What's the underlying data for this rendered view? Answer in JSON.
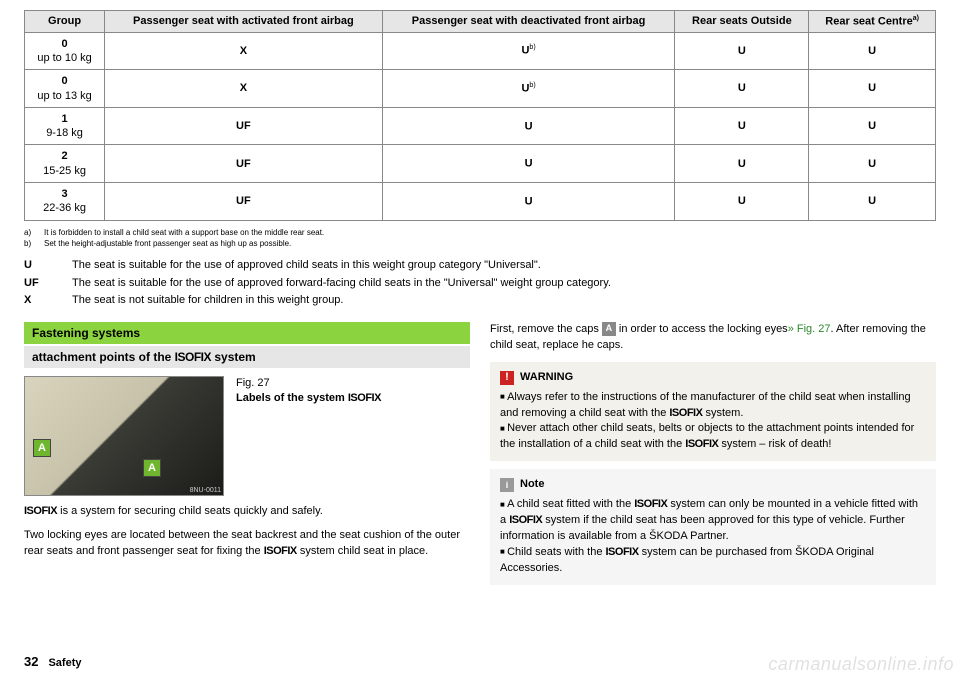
{
  "table": {
    "headers": [
      "Group",
      "Passenger seat with activated front airbag",
      "Passenger seat with deactivated front airbag",
      "Rear seats Outside",
      "Rear seat Centre"
    ],
    "header_sups": [
      "",
      "",
      "",
      "",
      "a)"
    ],
    "rows": [
      {
        "group_main": "0",
        "group_sub": "up to 10 kg",
        "c1": "X",
        "c2": "U",
        "c2_sup": "b)",
        "c3": "U",
        "c4": "U"
      },
      {
        "group_main": "0",
        "group_sub": "up to 13 kg",
        "c1": "X",
        "c2": "U",
        "c2_sup": "b)",
        "c3": "U",
        "c4": "U"
      },
      {
        "group_main": "1",
        "group_sub": "9-18 kg",
        "c1": "UF",
        "c2": "U",
        "c2_sup": "",
        "c3": "U",
        "c4": "U"
      },
      {
        "group_main": "2",
        "group_sub": "15-25 kg",
        "c1": "UF",
        "c2": "U",
        "c2_sup": "",
        "c3": "U",
        "c4": "U"
      },
      {
        "group_main": "3",
        "group_sub": "22-36 kg",
        "c1": "UF",
        "c2": "U",
        "c2_sup": "",
        "c3": "U",
        "c4": "U"
      }
    ]
  },
  "footnotes": {
    "a_lbl": "a)",
    "a_txt": "It is forbidden to install a child seat with a support base on the middle rear seat.",
    "b_lbl": "b)",
    "b_txt": "Set the height-adjustable front passenger seat as high up as possible."
  },
  "legend": {
    "u_key": "U",
    "u_txt": "The seat is suitable for the use of approved child seats in this weight group category \"Universal\".",
    "uf_key": "UF",
    "uf_txt": "The seat is suitable for the use of approved forward-facing child seats in the \"Universal\" weight group category.",
    "x_key": "X",
    "x_txt": "The seat is not suitable for children in this weight group."
  },
  "left": {
    "heading1": "Fastening systems",
    "heading2_pre": "attachment points of the ",
    "heading2_isofix": "ISOFIX",
    "heading2_post": " system",
    "fig_num": "Fig. 27",
    "fig_title_pre": "Labels of the system ",
    "fig_title_isofix": "ISOFIX",
    "fig_marker": "A",
    "fig_code": "8NU-0011",
    "p1_isofix": "ISOFIX",
    "p1_rest": " is a system for securing child seats quickly and safely.",
    "p2_pre": "Two locking eyes are located between the seat backrest and the seat cushion of the outer rear seats and front passenger seat for fixing the ",
    "p2_isofix": "ISOFIX",
    "p2_post": " system child seat in place."
  },
  "right": {
    "p1_pre": "First, remove the caps ",
    "p1_marker": "A",
    "p1_mid": " in order to access the locking eyes",
    "p1_link": "» Fig. 27",
    "p1_post": ". After removing the child seat, replace he caps.",
    "warn_title": "WARNING",
    "warn_li1_pre": "Always refer to the instructions of the manufacturer of the child seat when installing and removing a child seat with the ",
    "warn_li1_isofix": "ISOFIX",
    "warn_li1_post": " system.",
    "warn_li2_pre": "Never attach other child seats, belts or objects to the attachment points intended for the installation of a child seat with the ",
    "warn_li2_isofix": "ISOFIX",
    "warn_li2_post": " system – risk of death!",
    "note_title": "Note",
    "note_li1_pre": "A child seat fitted with the ",
    "note_li1_isofix1": "ISOFIX",
    "note_li1_mid": " system can only be mounted in a vehicle fitted with a ",
    "note_li1_isofix2": "ISOFIX",
    "note_li1_post": " system if the child seat has been approved for this type of vehicle. Further information is available from a ŠKODA Partner.",
    "note_li2_pre": "Child seats with the ",
    "note_li2_isofix": "ISOFIX",
    "note_li2_post": " system can be purchased from ŠKODA Original Accessories."
  },
  "footer": {
    "page": "32",
    "section": "Safety"
  },
  "watermark": "carmanualsonline.info"
}
